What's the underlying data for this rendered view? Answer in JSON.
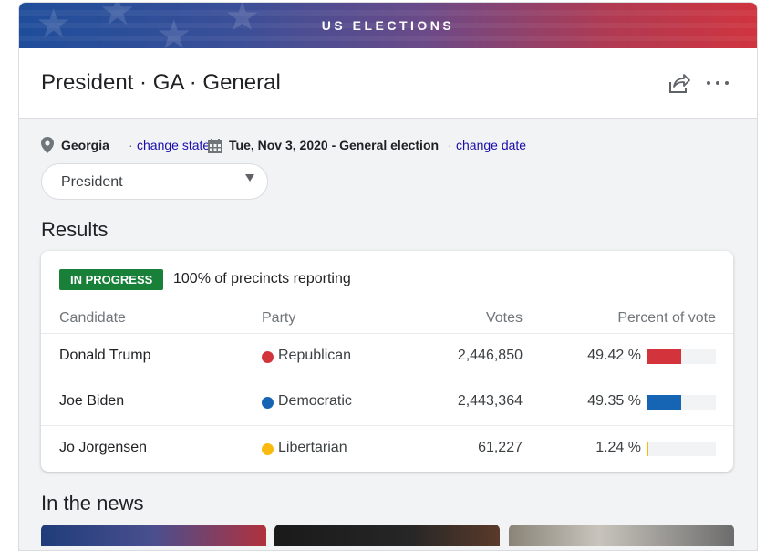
{
  "banner": {
    "title": "US ELECTIONS"
  },
  "header": {
    "title": "President · GA · General"
  },
  "meta": {
    "state": "Georgia",
    "change_state": "change state",
    "date": "Tue, Nov 3, 2020 - General election",
    "change_date": "change date",
    "separator": "·"
  },
  "race_select": {
    "value": "President"
  },
  "results": {
    "title": "Results",
    "status_badge": "IN PROGRESS",
    "reporting": "100% of precincts reporting",
    "columns": [
      "Candidate",
      "Party",
      "Votes",
      "Percent of vote"
    ],
    "rows": [
      {
        "candidate": "Donald Trump",
        "party": "Republican",
        "party_color": "#d3343c",
        "votes": "2,446,850",
        "percent": "49.42 %",
        "percent_value": 49.42
      },
      {
        "candidate": "Joe Biden",
        "party": "Democratic",
        "party_color": "#1565b4",
        "votes": "2,443,364",
        "percent": "49.35 %",
        "percent_value": 49.35
      },
      {
        "candidate": "Jo Jorgensen",
        "party": "Libertarian",
        "party_color": "#f9b90d",
        "votes": "61,227",
        "percent": "1.24 %",
        "percent_value": 1.24
      }
    ]
  },
  "news": {
    "title": "In the news"
  },
  "icons": {
    "location": "location-pin-icon",
    "calendar": "calendar-icon",
    "share": "share-icon",
    "more": "more-horizontal-icon",
    "dropdown": "triangle-down-icon"
  }
}
